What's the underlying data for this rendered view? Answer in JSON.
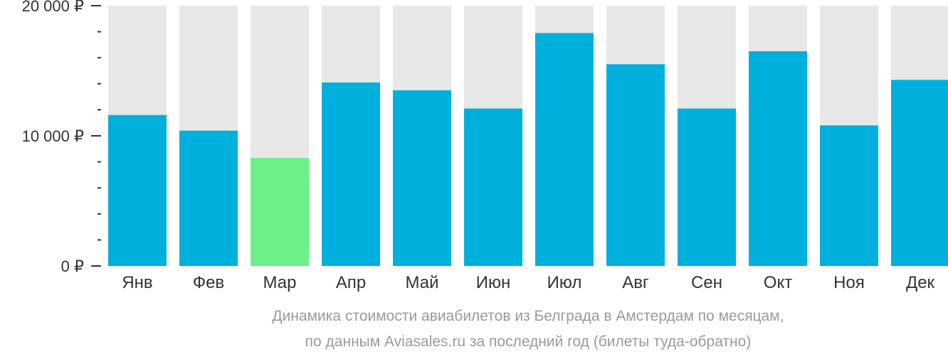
{
  "chart_data": {
    "type": "bar",
    "categories": [
      "Янв",
      "Фев",
      "Мар",
      "Апр",
      "Май",
      "Июн",
      "Июл",
      "Авг",
      "Сен",
      "Окт",
      "Ноя",
      "Дек"
    ],
    "values": [
      11600,
      10400,
      8300,
      14100,
      13500,
      12100,
      17900,
      15500,
      12100,
      16500,
      10800,
      14300
    ],
    "ylim": [
      0,
      20000
    ],
    "y_ticks": [
      {
        "value": 0,
        "label": "0 ₽"
      },
      {
        "value": 10000,
        "label": "10 000 ₽"
      },
      {
        "value": 20000,
        "label": "20 000 ₽"
      }
    ],
    "minor_tick_step": 2000,
    "highlight_index": 2,
    "caption_lines": [
      "Динамика стоимости авиабилетов из Белграда в Амстердам по месяцам,",
      "по данным Aviasales.ru за последний год (билеты туда-обратно)"
    ],
    "grid": false,
    "legend": "none"
  },
  "colors": {
    "bar": "#00b0dc",
    "highlight": "#6df08a",
    "track": "#e8e8e8",
    "axis": "#333333",
    "caption": "#9a9a9a"
  }
}
